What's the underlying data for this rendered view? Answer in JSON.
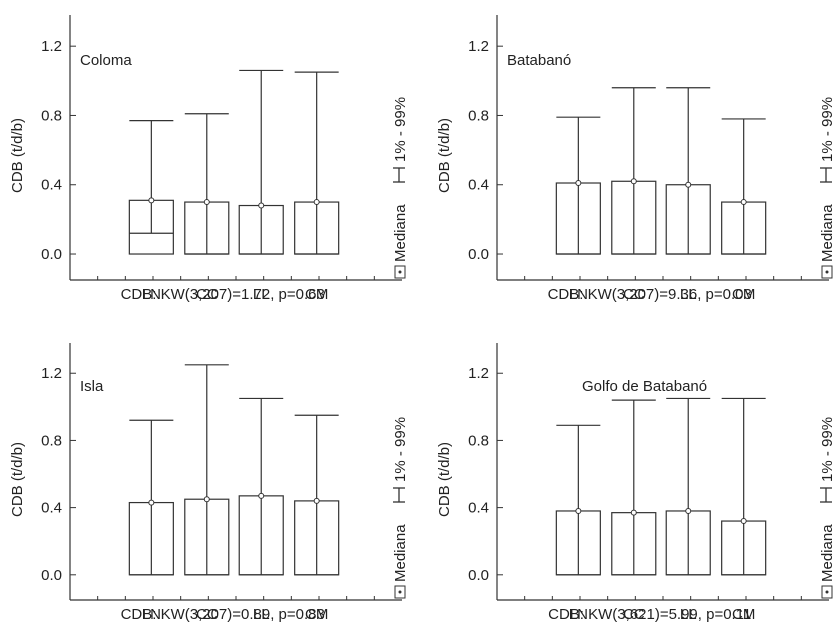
{
  "chart_data": [
    {
      "type": "boxplot",
      "title": "Coloma",
      "ylabel": "CDB (t/d/b)",
      "categories": [
        "LN",
        "CC",
        "LL",
        "CM"
      ],
      "median": [
        0.31,
        0.3,
        0.28,
        0.3
      ],
      "whisker_low": [
        0.12,
        0.0,
        0.0,
        0.0
      ],
      "whisker_high": [
        0.77,
        0.81,
        1.06,
        1.05
      ],
      "ylim": [
        -0.15,
        1.38
      ],
      "yticks": [
        "0.0",
        "0.4",
        "0.8",
        "1.2"
      ],
      "legend": [
        "Mediana",
        "1% - 99%"
      ],
      "legend_position": "right",
      "caption": "CDB: KW(3,207)=1.72, p=0.63"
    },
    {
      "type": "boxplot",
      "title": "Batabanó",
      "ylabel": "CDB (t/d/b)",
      "categories": [
        "LN",
        "CC",
        "LL",
        "CM"
      ],
      "median": [
        0.41,
        0.42,
        0.4,
        0.3
      ],
      "whisker_low": [
        0.0,
        0.0,
        0.0,
        0.0
      ],
      "whisker_high": [
        0.79,
        0.96,
        0.96,
        0.78
      ],
      "ylim": [
        -0.15,
        1.38
      ],
      "yticks": [
        "0.0",
        "0.4",
        "0.8",
        "1.2"
      ],
      "legend": [
        "Mediana",
        "1% - 99%"
      ],
      "legend_position": "right",
      "caption": "CDB: KW(3,207)=9.36, p=0.03"
    },
    {
      "type": "boxplot",
      "title": "Isla",
      "ylabel": "CDB (t/d/b)",
      "categories": [
        "LN",
        "CC",
        "LL",
        "CM"
      ],
      "median": [
        0.43,
        0.45,
        0.47,
        0.44
      ],
      "whisker_low": [
        0.0,
        0.0,
        0.0,
        0.0
      ],
      "whisker_high": [
        0.92,
        1.25,
        1.05,
        0.95
      ],
      "ylim": [
        -0.15,
        1.38
      ],
      "yticks": [
        "0.0",
        "0.4",
        "0.8",
        "1.2"
      ],
      "legend": [
        "Mediana",
        "1% - 99%"
      ],
      "legend_position": "right",
      "caption": "CDB: KW(3,207)=0.89, p=0.83"
    },
    {
      "type": "boxplot",
      "title": "Golfo de Batabanó",
      "ylabel": "CDB (t/d/b)",
      "categories": [
        "LN",
        "CC",
        "LL",
        "CM"
      ],
      "median": [
        0.38,
        0.37,
        0.38,
        0.32
      ],
      "whisker_low": [
        0.0,
        0.0,
        0.0,
        0.0
      ],
      "whisker_high": [
        0.89,
        1.04,
        1.05,
        1.05
      ],
      "ylim": [
        -0.15,
        1.38
      ],
      "yticks": [
        "0.0",
        "0.4",
        "0.8",
        "1.2"
      ],
      "legend": [
        "Mediana",
        "1% - 99%"
      ],
      "legend_position": "right",
      "caption": "CDB: KW(3,621)=5.99, p=0.11"
    }
  ]
}
